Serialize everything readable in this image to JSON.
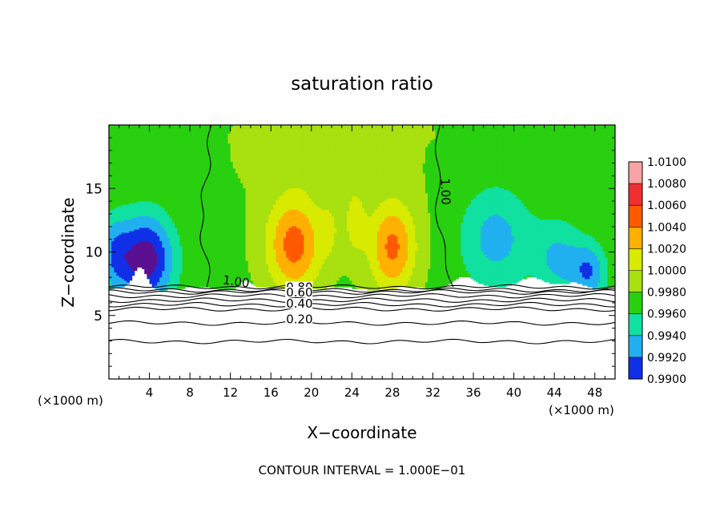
{
  "chart_data": {
    "type": "heatmap",
    "title": "saturation ratio",
    "xlabel": "X−coordinate",
    "ylabel": "Z−coordinate",
    "x_unit_left": "(×1000 m)",
    "x_unit_right": "(×1000 m)",
    "footer": "CONTOUR INTERVAL = 1.000E−01",
    "xlim": [
      0,
      50
    ],
    "ylim": [
      0,
      20
    ],
    "x_ticks": [
      4,
      8,
      12,
      16,
      20,
      24,
      28,
      32,
      36,
      40,
      44,
      48
    ],
    "y_ticks": [
      5,
      10,
      15
    ],
    "colorbar": {
      "levels": [
        "1.0100",
        "1.0080",
        "1.0060",
        "1.0040",
        "1.0020",
        "1.0000",
        "0.9980",
        "0.9960",
        "0.9940",
        "0.9920",
        "0.9900"
      ],
      "colors": [
        "#f7a3a3",
        "#f03030",
        "#ff5a00",
        "#ffb000",
        "#d8ea00",
        "#a8e010",
        "#28d010",
        "#10e0a0",
        "#20b0f0",
        "#1030e8",
        "#5a1090"
      ]
    },
    "contour_labels": [
      {
        "text": "1.00",
        "x": 11.2,
        "z": 7.5
      },
      {
        "text": "1.00",
        "x": 32.8,
        "z": 15.8
      },
      {
        "text": "0.80",
        "x": 17.5,
        "z": 6.9
      },
      {
        "text": "0.60",
        "x": 17.5,
        "z": 6.5
      },
      {
        "text": "0.40",
        "x": 17.5,
        "z": 5.6
      },
      {
        "text": "0.20",
        "x": 17.5,
        "z": 4.4
      }
    ]
  }
}
